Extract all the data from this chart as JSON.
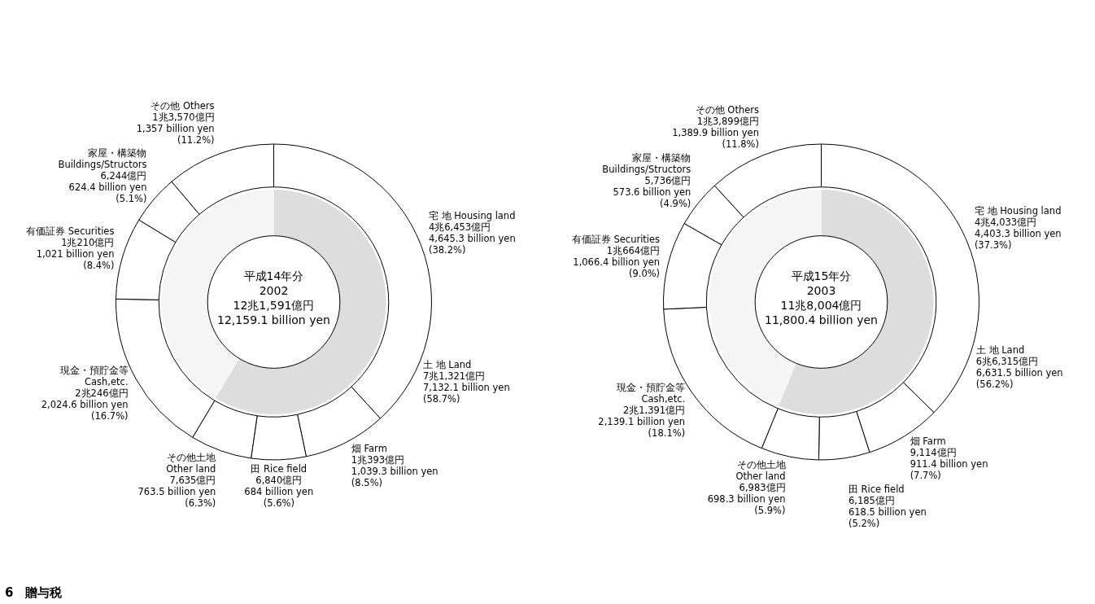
{
  "chart_data": [
    {
      "type": "donut",
      "title": "平成14年分",
      "subtitle": "2002",
      "legend": false,
      "categories": [
        "宅 地 Housing land",
        "畑 Farm",
        "田 Rice field",
        "その他土地\nOther land",
        "現金・預貯金等\nCash,etc.",
        "有価証券 Securities",
        "家屋・構築物\nBuildings/Structors",
        "その他 Others"
      ],
      "values": [
        38.2,
        8.5,
        5.6,
        6.3,
        16.7,
        8.4,
        5.1,
        11.2
      ],
      "colors": [
        "#ffffff",
        "#ffffff",
        "#ffffff",
        "#ffffff",
        "#ffffff",
        "#ffffff",
        "#ffffff",
        "#ffffff"
      ],
      "value_labels": [
        "4兆6,453億円\n4,645.3 billion yen\n(38.2%)",
        "1兆393億円\n1,039.3 billion yen\n(8.5%)",
        "6,840億円\n684 billion yen\n(5.6%)",
        "7,635億円\n763.5 billion yen\n(6.3%)",
        "2兆246億円\n2,024.6 billion yen\n(16.7%)",
        "1兆210億円\n1,021 billion yen\n(8.4%)",
        "6,244億円\n624.4 billion yen\n(5.1%)",
        "1兆3,570億円\n1,357 billion yen\n(11.2%)"
      ],
      "annotations": [
        "12兆1,591億円",
        "12,159.1 billion yen",
        "6　贈与税"
      ]
    },
    {
      "type": "donut",
      "categories": [
        "土 地 Land",
        null
      ],
      "values": [
        58.7,
        41.3
      ],
      "colors": [
        "#dddddd",
        "#f5f5f5"
      ],
      "value_labels": [
        "7兆1,321億円\n7,132.1 billion yen\n(58.7%)",
        null
      ]
    },
    {
      "type": "donut",
      "title": "平成15年分",
      "subtitle": "2003",
      "legend": false,
      "categories": [
        "宅 地 Housing land",
        "畑 Farm",
        "田 Rice field",
        "その他土地\nOther land",
        "現金・預貯金等\nCash,etc.",
        "有価証券 Securities",
        "家屋・構築物\nBuildings/Structors",
        "その他 Others"
      ],
      "values": [
        37.3,
        7.7,
        5.2,
        5.9,
        18.1,
        9.0,
        4.9,
        11.8
      ],
      "colors": [
        "#ffffff",
        "#ffffff",
        "#ffffff",
        "#ffffff",
        "#ffffff",
        "#ffffff",
        "#ffffff",
        "#ffffff"
      ],
      "value_labels": [
        "4兆4,033億円\n4,403.3 billion yen\n(37.3%)",
        "9,114億円\n911.4 billion yen\n(7.7%)",
        "6,185億円\n618.5 billion yen\n(5.2%)",
        "6,983億円\n698.3 billion yen\n(5.9%)",
        "2兆1,391億円\n2,139.1 billion yen\n(18.1%)",
        "1兆664億円\n1,066.4 billion yen\n(9.0%)",
        "5,736億円\n573.6 billion yen\n(4.9%)",
        "1兆3,899億円\n1,389.9 billion yen\n(11.8%)"
      ],
      "annotations": [
        "11兆8,004億円",
        "11,800.4 billion yen"
      ]
    },
    {
      "type": "donut",
      "categories": [
        "土 地 Land",
        null
      ],
      "values": [
        56.2,
        43.8
      ],
      "colors": [
        "#dddddd",
        "#f5f5f5"
      ],
      "value_labels": [
        "6兆6,315億円\n6,631.5 billion yen\n(56.2%)",
        null
      ]
    }
  ]
}
